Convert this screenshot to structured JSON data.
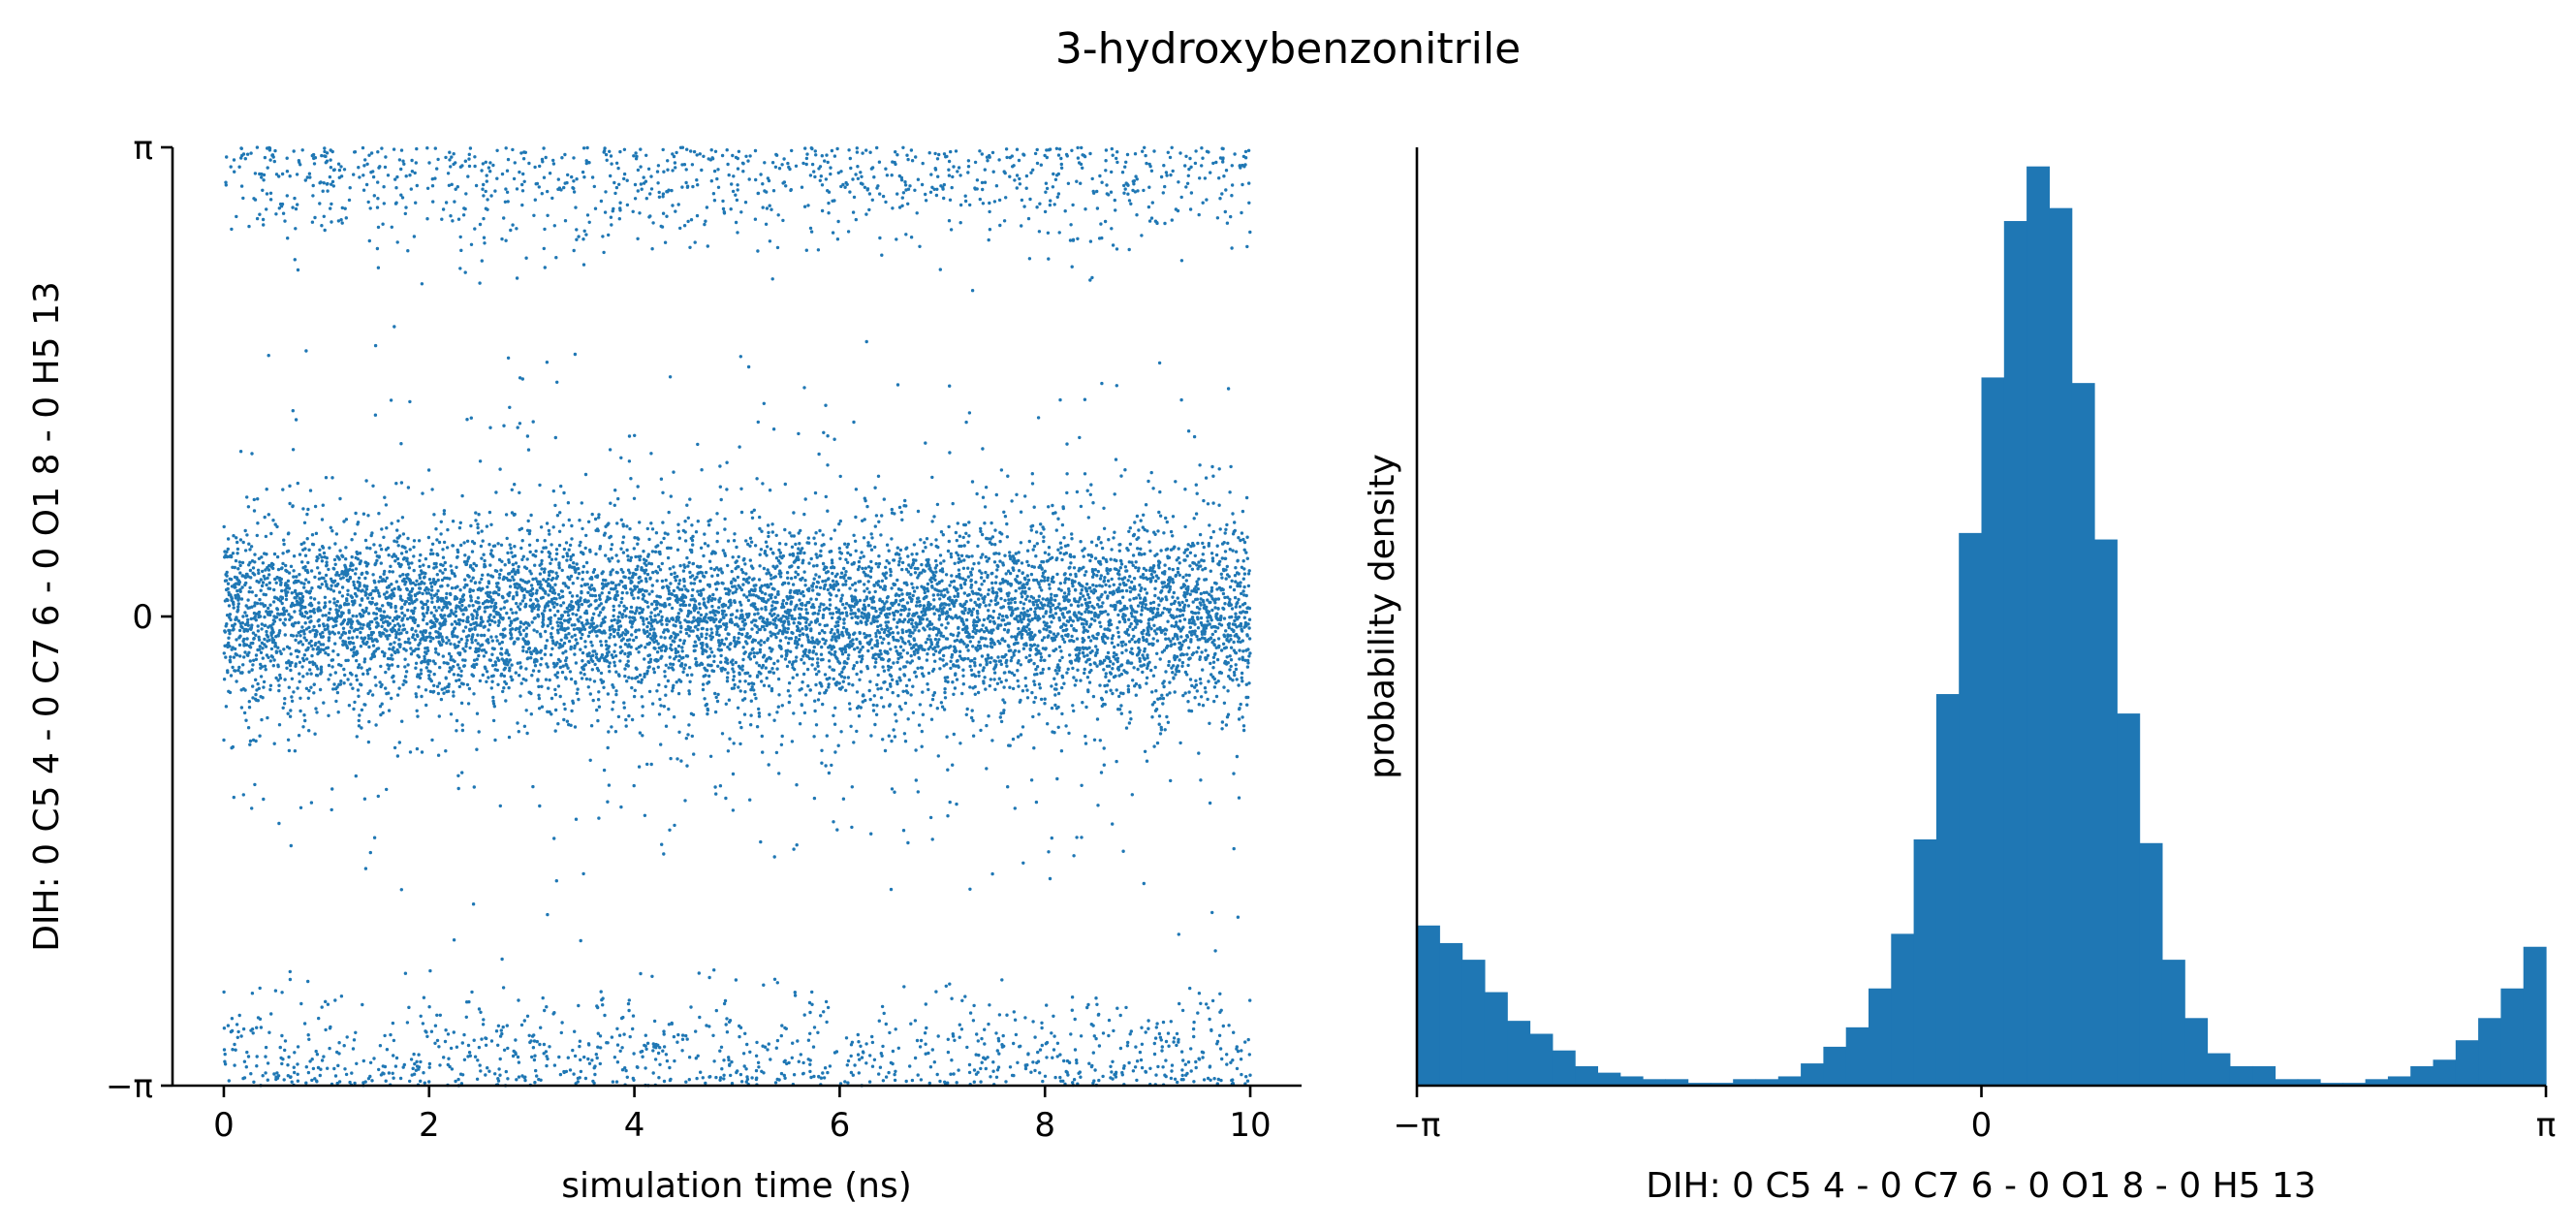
{
  "chart_data": [
    {
      "type": "scatter",
      "title": "",
      "xlabel": "simulation time (ns)",
      "ylabel": "DIH:  0 C5 4 -  0 C7 6 -  0 O1 8 -  0 H5 13",
      "xlim": [
        -0.5,
        10.5
      ],
      "ylim": [
        -3.14159,
        3.14159
      ],
      "xticks": [
        0,
        2,
        4,
        6,
        8,
        10
      ],
      "xtick_labels": [
        "0",
        "2",
        "4",
        "6",
        "8",
        "10"
      ],
      "yticks": [
        -3.14159,
        0,
        3.14159
      ],
      "ytick_labels": [
        "−π",
        "0",
        "π"
      ],
      "grid": false,
      "color": "#1f77b4",
      "sampling": {
        "n_points": 10000,
        "x_range": [
          0,
          10
        ],
        "main_cluster": {
          "fraction": 0.8,
          "center": 0,
          "spread": 0.3
        },
        "plus_pi_cluster": {
          "fraction": 0.1,
          "center": 3.14159,
          "spread": 0.3
        },
        "minus_pi_cluster": {
          "fraction": 0.1,
          "center": -3.14159,
          "spread": 0.3
        }
      }
    },
    {
      "type": "bar",
      "title": "",
      "xlabel": "DIH:  0 C5 4 -  0 C7 6 -  0 O1 8 -  0 H5 13",
      "ylabel": "probability density",
      "xlim": [
        -3.14159,
        3.14159
      ],
      "xticks": [
        -3.14159,
        0,
        3.14159
      ],
      "xtick_labels": [
        "−π",
        "0",
        "π"
      ],
      "yticks": [],
      "grid": false,
      "color": "#1f77b4",
      "bin_count": 50,
      "values": [
        0.173,
        0.154,
        0.136,
        0.101,
        0.07,
        0.056,
        0.038,
        0.021,
        0.014,
        0.01,
        0.007,
        0.007,
        0.003,
        0.003,
        0.007,
        0.007,
        0.01,
        0.024,
        0.042,
        0.063,
        0.105,
        0.164,
        0.266,
        0.423,
        0.597,
        0.765,
        0.934,
        0.993,
        0.948,
        0.759,
        0.59,
        0.402,
        0.262,
        0.136,
        0.073,
        0.035,
        0.021,
        0.021,
        0.007,
        0.007,
        0.003,
        0.003,
        0.007,
        0.01,
        0.021,
        0.028,
        0.049,
        0.073,
        0.105,
        0.15
      ]
    }
  ],
  "figure": {
    "title": "3-hydroxybenzonitrile"
  }
}
